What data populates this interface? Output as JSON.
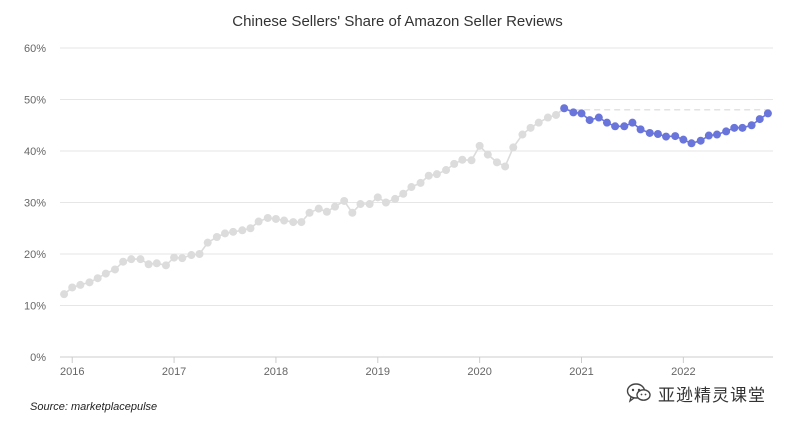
{
  "chart_data": {
    "type": "line",
    "title": "Chinese Sellers' Share of Amazon Seller Reviews",
    "xlabel": "",
    "ylabel": "",
    "x_ticks": [
      "2016",
      "2017",
      "2018",
      "2019",
      "2020",
      "2021",
      "2022"
    ],
    "y_ticks": [
      "0%",
      "10%",
      "20%",
      "30%",
      "40%",
      "50%",
      "60%"
    ],
    "ylim": [
      0,
      60
    ],
    "y_unit": "%",
    "grid": "horizontal",
    "reference_line": {
      "value": 48,
      "style": "dashed"
    },
    "series": [
      {
        "color": "#dcdcdc",
        "points": [
          [
            2015.92,
            12.2
          ],
          [
            2016.0,
            13.5
          ],
          [
            2016.08,
            14.0
          ],
          [
            2016.17,
            14.5
          ],
          [
            2016.25,
            15.3
          ],
          [
            2016.33,
            16.2
          ],
          [
            2016.42,
            17.0
          ],
          [
            2016.5,
            18.5
          ],
          [
            2016.58,
            19.0
          ],
          [
            2016.67,
            19.0
          ],
          [
            2016.75,
            18.0
          ],
          [
            2016.83,
            18.2
          ],
          [
            2016.92,
            17.8
          ],
          [
            2017.0,
            19.3
          ],
          [
            2017.08,
            19.2
          ],
          [
            2017.17,
            19.8
          ],
          [
            2017.25,
            20.0
          ],
          [
            2017.33,
            22.2
          ],
          [
            2017.42,
            23.3
          ],
          [
            2017.5,
            24.0
          ],
          [
            2017.58,
            24.3
          ],
          [
            2017.67,
            24.6
          ],
          [
            2017.75,
            25.0
          ],
          [
            2017.83,
            26.3
          ],
          [
            2017.92,
            27.0
          ],
          [
            2018.0,
            26.8
          ],
          [
            2018.08,
            26.5
          ],
          [
            2018.17,
            26.2
          ],
          [
            2018.25,
            26.2
          ],
          [
            2018.33,
            28.0
          ],
          [
            2018.42,
            28.8
          ],
          [
            2018.5,
            28.2
          ],
          [
            2018.58,
            29.2
          ],
          [
            2018.67,
            30.3
          ],
          [
            2018.75,
            28.0
          ],
          [
            2018.83,
            29.7
          ],
          [
            2018.92,
            29.7
          ],
          [
            2019.0,
            31.0
          ],
          [
            2019.08,
            30.0
          ],
          [
            2019.17,
            30.7
          ],
          [
            2019.25,
            31.7
          ],
          [
            2019.33,
            33.0
          ],
          [
            2019.42,
            33.8
          ],
          [
            2019.5,
            35.2
          ],
          [
            2019.58,
            35.5
          ],
          [
            2019.67,
            36.3
          ],
          [
            2019.75,
            37.5
          ],
          [
            2019.83,
            38.3
          ],
          [
            2019.92,
            38.2
          ],
          [
            2020.0,
            41.0
          ],
          [
            2020.08,
            39.3
          ],
          [
            2020.17,
            37.8
          ],
          [
            2020.25,
            37.0
          ],
          [
            2020.33,
            40.7
          ],
          [
            2020.42,
            43.2
          ],
          [
            2020.5,
            44.5
          ],
          [
            2020.58,
            45.5
          ],
          [
            2020.67,
            46.5
          ],
          [
            2020.75,
            47.0
          ],
          [
            2020.83,
            48.3
          ]
        ]
      },
      {
        "color": "#6a75dc",
        "points": [
          [
            2020.83,
            48.3
          ],
          [
            2020.92,
            47.5
          ],
          [
            2021.0,
            47.3
          ],
          [
            2021.08,
            46.0
          ],
          [
            2021.17,
            46.5
          ],
          [
            2021.25,
            45.5
          ],
          [
            2021.33,
            44.8
          ],
          [
            2021.42,
            44.8
          ],
          [
            2021.5,
            45.5
          ],
          [
            2021.58,
            44.2
          ],
          [
            2021.67,
            43.5
          ],
          [
            2021.75,
            43.3
          ],
          [
            2021.83,
            42.8
          ],
          [
            2021.92,
            42.9
          ],
          [
            2022.0,
            42.2
          ],
          [
            2022.08,
            41.5
          ],
          [
            2022.17,
            42.0
          ],
          [
            2022.25,
            43.0
          ],
          [
            2022.33,
            43.2
          ],
          [
            2022.42,
            43.8
          ],
          [
            2022.5,
            44.5
          ],
          [
            2022.58,
            44.5
          ],
          [
            2022.67,
            45.0
          ],
          [
            2022.75,
            46.2
          ],
          [
            2022.83,
            47.3
          ]
        ]
      }
    ]
  },
  "source": "Source: marketplacepulse",
  "watermark": {
    "icon": "wechat-icon",
    "text": "亚逊精灵课堂"
  }
}
